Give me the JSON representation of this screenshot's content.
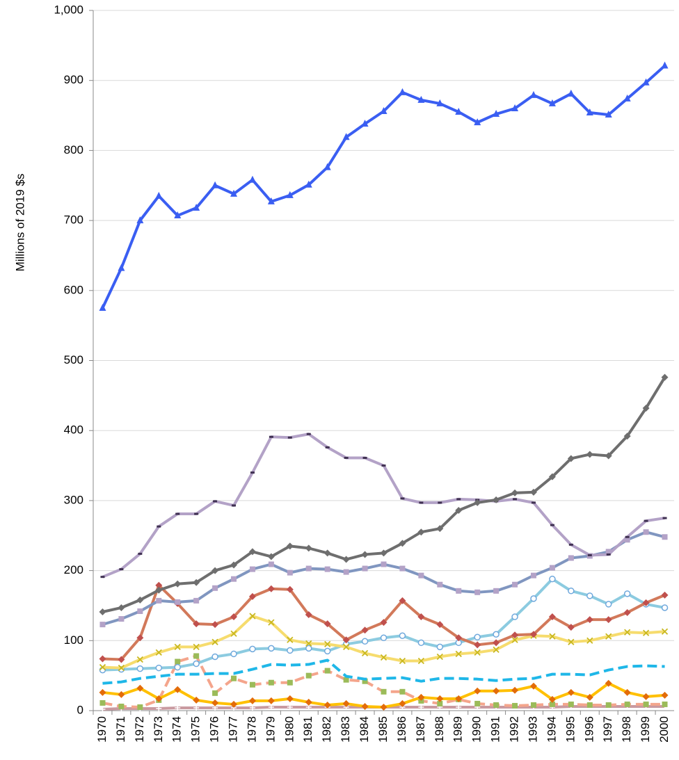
{
  "chart_data": {
    "type": "line",
    "y_label": "Millions of 2019 $s",
    "categories": [
      "1970",
      "1971",
      "1972",
      "1973",
      "1974",
      "1975",
      "1976",
      "1977",
      "1978",
      "1979",
      "1980",
      "1981",
      "1982",
      "1983",
      "1984",
      "1985",
      "1986",
      "1987",
      "1988",
      "1989",
      "1990",
      "1991",
      "1992",
      "1993",
      "1994",
      "1995",
      "1996",
      "1997",
      "1998",
      "1999",
      "2000"
    ],
    "ylim": [
      0,
      1000
    ],
    "yticks": [
      0,
      100,
      200,
      300,
      400,
      500,
      600,
      700,
      800,
      900,
      {
        "value": 1000,
        "label": "1,000"
      }
    ],
    "grid": true,
    "series": [
      {
        "color": "#3a5ef2",
        "marker": "triangle",
        "marker_color": "#3a5ef2",
        "width": 4,
        "values": [
          575,
          632,
          700,
          735,
          707,
          718,
          750,
          738,
          758,
          727,
          736,
          751,
          776,
          819,
          838,
          856,
          883,
          872,
          867,
          855,
          840,
          852,
          860,
          879,
          867,
          881,
          854,
          851,
          874,
          897,
          921
        ]
      },
      {
        "color": "#6e6e6e",
        "marker": "diamond",
        "marker_color": "#6e6e6e",
        "width": 4,
        "values": [
          141,
          147,
          158,
          172,
          181,
          183,
          200,
          208,
          227,
          220,
          235,
          232,
          225,
          216,
          223,
          225,
          239,
          255,
          260,
          286,
          297,
          301,
          311,
          312,
          334,
          360,
          366,
          364,
          392,
          432,
          476
        ]
      },
      {
        "color": "#b3a2c7",
        "marker": "dash",
        "marker_color": "#403152",
        "width": 4,
        "values": [
          191,
          202,
          224,
          263,
          281,
          281,
          299,
          293,
          340,
          391,
          390,
          395,
          376,
          361,
          361,
          350,
          303,
          297,
          297,
          302,
          301,
          299,
          302,
          297,
          265,
          237,
          222,
          223,
          248,
          271,
          275
        ]
      },
      {
        "color": "#8096c0",
        "marker": "square",
        "marker_color": "#b3a2c7",
        "width": 4,
        "values": [
          123,
          131,
          142,
          157,
          155,
          157,
          175,
          188,
          202,
          209,
          197,
          203,
          202,
          198,
          203,
          209,
          203,
          193,
          180,
          171,
          169,
          171,
          180,
          193,
          204,
          218,
          221,
          227,
          244,
          255,
          248
        ]
      },
      {
        "color": "#d2795a",
        "marker": "diamond",
        "marker_color": "#c0504d",
        "width": 4,
        "values": [
          74,
          73,
          104,
          179,
          153,
          124,
          123,
          134,
          163,
          174,
          173,
          137,
          124,
          101,
          115,
          126,
          157,
          134,
          123,
          104,
          94,
          97,
          108,
          109,
          134,
          119,
          130,
          130,
          140,
          154,
          165
        ]
      },
      {
        "color": "#f6dc6e",
        "marker": "x",
        "marker_color": "#c9b820",
        "width": 4,
        "values": [
          62,
          61,
          73,
          83,
          91,
          91,
          98,
          110,
          135,
          126,
          101,
          96,
          95,
          91,
          82,
          76,
          71,
          71,
          77,
          81,
          83,
          87,
          101,
          107,
          106,
          98,
          100,
          106,
          112,
          111,
          113
        ]
      },
      {
        "color": "#8ccbe0",
        "marker": "circle",
        "marker_color": "#6fa8dc",
        "width": 4,
        "values": [
          58,
          59,
          60,
          61,
          62,
          67,
          77,
          81,
          88,
          89,
          86,
          89,
          85,
          95,
          99,
          104,
          107,
          97,
          91,
          97,
          105,
          109,
          134,
          160,
          188,
          171,
          164,
          152,
          167,
          152,
          147
        ]
      },
      {
        "color": "#1fb7e8",
        "marker": "none",
        "marker_color": "#1fb7e8",
        "width": 4,
        "dashed": true,
        "values": [
          39,
          41,
          46,
          49,
          52,
          52,
          53,
          53,
          59,
          66,
          65,
          66,
          72,
          49,
          45,
          46,
          47,
          42,
          46,
          46,
          45,
          43,
          45,
          46,
          52,
          52,
          51,
          58,
          63,
          64,
          63
        ]
      },
      {
        "color": "#ffc000",
        "marker": "diamond",
        "marker_color": "#e36c09",
        "width": 4,
        "values": [
          26,
          23,
          32,
          17,
          30,
          15,
          11,
          9,
          14,
          14,
          17,
          12,
          8,
          10,
          6,
          5,
          10,
          19,
          17,
          17,
          28,
          28,
          29,
          35,
          16,
          26,
          19,
          39,
          26,
          20,
          22
        ]
      },
      {
        "color": "#f4a58c",
        "marker": "square",
        "marker_color": "#9bbb59",
        "width": 4,
        "dashed": true,
        "values": [
          11,
          6,
          5,
          15,
          70,
          78,
          25,
          46,
          37,
          40,
          40,
          50,
          57,
          44,
          42,
          27,
          27,
          14,
          10,
          16,
          10,
          8,
          7,
          8,
          9,
          9,
          8,
          8,
          9,
          9,
          9
        ]
      },
      {
        "color": "#c99aa0",
        "marker": "plus",
        "marker_color": "#ffffff",
        "width": 4,
        "values": [
          2,
          3,
          3,
          3,
          4,
          4,
          4,
          4,
          4,
          5,
          5,
          5,
          5,
          5,
          5,
          5,
          5,
          5,
          5,
          5,
          5,
          5,
          5,
          5,
          5,
          6,
          6,
          6,
          6,
          6,
          6
        ]
      }
    ]
  }
}
